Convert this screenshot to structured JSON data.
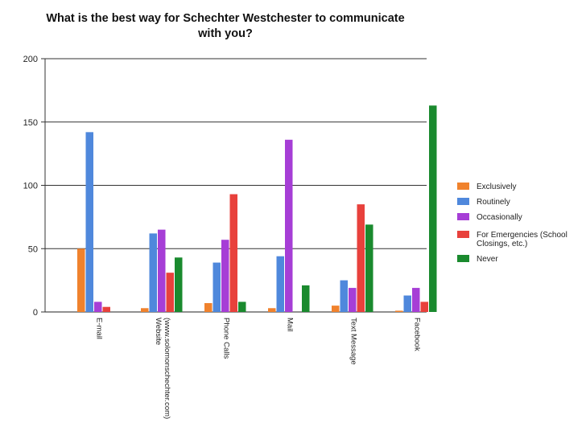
{
  "chart_data": {
    "type": "bar",
    "title_lines": [
      "What is the best way for Schechter Westchester to communicate",
      "with you?"
    ],
    "categories": [
      [
        "E-mail"
      ],
      [
        "Website",
        "(www.solomonschechter.com)"
      ],
      [
        "Phone Calls"
      ],
      [
        "Mail"
      ],
      [
        "Text Message"
      ],
      [
        "Facebook"
      ]
    ],
    "series": [
      {
        "name": "Exclusively",
        "color": "#f0822d",
        "values": [
          50,
          3,
          7,
          3,
          5,
          1
        ]
      },
      {
        "name": "Routinely",
        "color": "#4f88dc",
        "values": [
          142,
          62,
          39,
          44,
          25,
          13
        ]
      },
      {
        "name": "Occasionally",
        "color": "#a63ed6",
        "values": [
          8,
          65,
          57,
          136,
          19,
          19
        ]
      },
      {
        "name": "For Emergencies (School Closings, etc.)",
        "color": "#e8413c",
        "values": [
          4,
          31,
          93,
          0,
          85,
          8
        ]
      },
      {
        "name": "Never",
        "color": "#1a8a2e",
        "values": [
          0,
          43,
          8,
          21,
          69,
          163
        ]
      }
    ],
    "legend_lines": [
      [
        "Exclusively"
      ],
      [
        "Routinely"
      ],
      [
        "Occasionally"
      ],
      [
        "For Emergencies (School",
        "Closings, etc.)"
      ],
      [
        "Never"
      ]
    ],
    "ylim": [
      0,
      200
    ],
    "yticks": [
      "0",
      "50",
      "100",
      "150",
      "200"
    ],
    "grid": true,
    "legend_position": "right"
  }
}
